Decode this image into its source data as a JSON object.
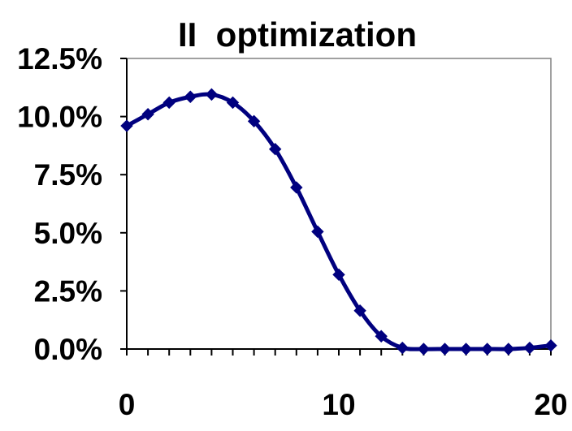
{
  "chart_data": {
    "type": "line",
    "title": "II  optimization",
    "xlabel": "",
    "ylabel": "",
    "x": [
      0,
      1,
      2,
      3,
      4,
      5,
      6,
      7,
      8,
      9,
      10,
      11,
      12,
      13,
      14,
      15,
      16,
      17,
      18,
      19,
      20
    ],
    "series": [
      {
        "values": [
          9.6,
          10.1,
          10.6,
          10.85,
          10.95,
          10.6,
          9.8,
          8.6,
          6.95,
          5.05,
          3.2,
          1.65,
          0.55,
          0.05,
          0.0,
          0.0,
          0.0,
          0.0,
          0.0,
          0.05,
          0.15
        ]
      }
    ],
    "xlim": [
      0,
      20
    ],
    "ylim": [
      0,
      12.5
    ],
    "x_ticks": [
      "0",
      "10",
      "20"
    ],
    "y_ticks": [
      "0.0%",
      "2.5%",
      "5.0%",
      "7.5%",
      "10.0%",
      "12.5%"
    ],
    "grid": false,
    "legend": "none",
    "marker": "diamond",
    "colors": {
      "series": "#00007f",
      "axis": "#000000",
      "plot_border": "#808080",
      "background": "#ffffff"
    }
  }
}
